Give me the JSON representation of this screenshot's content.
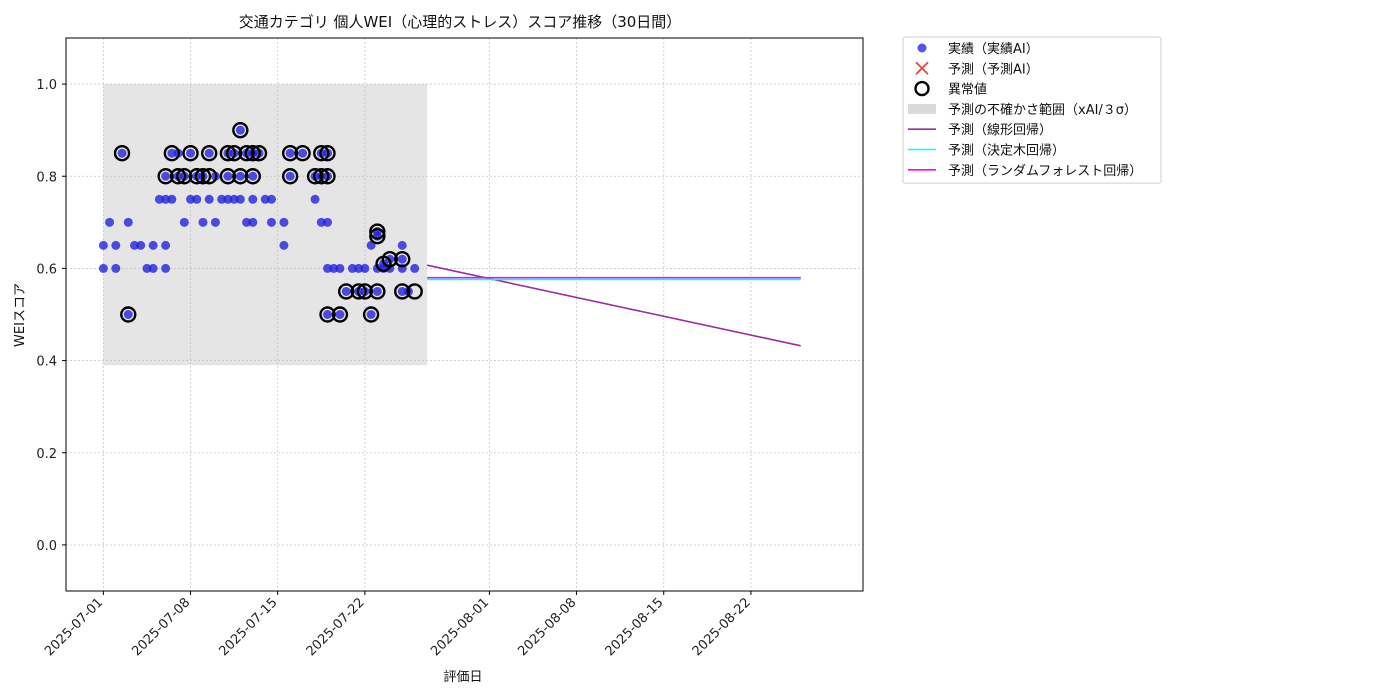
{
  "chart_data": {
    "type": "scatter",
    "title": "交通カテゴリ 個人WEI（心理的ストレス）スコア推移（30日間）",
    "xlabel": "評価日",
    "ylabel": "WEIスコア",
    "xlim": [
      "2025-06-28",
      "2025-08-31"
    ],
    "ylim": [
      -0.1,
      1.1
    ],
    "x_ticks": [
      "2025-07-01",
      "2025-07-08",
      "2025-07-15",
      "2025-07-22",
      "2025-08-01",
      "2025-08-08",
      "2025-08-15",
      "2025-08-22"
    ],
    "y_ticks": [
      "0.0",
      "0.2",
      "0.4",
      "0.6",
      "0.8",
      "1.0"
    ],
    "grid": true,
    "legend_position": "outside-top-right",
    "uncertainty_band": {
      "x": [
        "2025-07-01",
        "2025-07-27"
      ],
      "y": [
        0.39,
        1.0
      ]
    },
    "actual": [
      [
        "2025-07-01",
        0.6
      ],
      [
        "2025-07-01",
        0.65
      ],
      [
        "2025-07-01.5",
        0.7
      ],
      [
        "2025-07-02",
        0.65
      ],
      [
        "2025-07-02",
        0.6
      ],
      [
        "2025-07-02.5",
        0.85
      ],
      [
        "2025-07-03",
        0.7
      ],
      [
        "2025-07-03",
        0.5
      ],
      [
        "2025-07-03.5",
        0.65
      ],
      [
        "2025-07-04",
        0.65
      ],
      [
        "2025-07-04.5",
        0.6
      ],
      [
        "2025-07-05",
        0.65
      ],
      [
        "2025-07-05",
        0.6
      ],
      [
        "2025-07-05.5",
        0.75
      ],
      [
        "2025-07-06",
        0.6
      ],
      [
        "2025-07-06",
        0.65
      ],
      [
        "2025-07-06",
        0.75
      ],
      [
        "2025-07-06",
        0.8
      ],
      [
        "2025-07-06.5",
        0.75
      ],
      [
        "2025-07-06.5",
        0.85
      ],
      [
        "2025-07-07",
        0.8
      ],
      [
        "2025-07-07",
        0.85
      ],
      [
        "2025-07-07.5",
        0.8
      ],
      [
        "2025-07-07.5",
        0.7
      ],
      [
        "2025-07-08",
        0.75
      ],
      [
        "2025-07-08",
        0.85
      ],
      [
        "2025-07-08.5",
        0.8
      ],
      [
        "2025-07-08.5",
        0.75
      ],
      [
        "2025-07-09",
        0.7
      ],
      [
        "2025-07-09",
        0.8
      ],
      [
        "2025-07-09.5",
        0.75
      ],
      [
        "2025-07-09.5",
        0.85
      ],
      [
        "2025-07-10",
        0.7
      ],
      [
        "2025-07-10",
        0.8
      ],
      [
        "2025-07-10.5",
        0.75
      ],
      [
        "2025-07-11",
        0.75
      ],
      [
        "2025-07-11",
        0.85
      ],
      [
        "2025-07-11",
        0.8
      ],
      [
        "2025-07-11.5",
        0.85
      ],
      [
        "2025-07-11.5",
        0.75
      ],
      [
        "2025-07-12",
        0.8
      ],
      [
        "2025-07-12",
        0.9
      ],
      [
        "2025-07-12",
        0.75
      ],
      [
        "2025-07-12.5",
        0.85
      ],
      [
        "2025-07-12.5",
        0.7
      ],
      [
        "2025-07-13",
        0.75
      ],
      [
        "2025-07-13",
        0.7
      ],
      [
        "2025-07-13",
        0.85
      ],
      [
        "2025-07-13",
        0.8
      ],
      [
        "2025-07-13.5",
        0.85
      ],
      [
        "2025-07-14",
        0.75
      ],
      [
        "2025-07-14.5",
        0.75
      ],
      [
        "2025-07-14.5",
        0.7
      ],
      [
        "2025-07-15.5",
        0.7
      ],
      [
        "2025-07-15.5",
        0.65
      ],
      [
        "2025-07-16",
        0.85
      ],
      [
        "2025-07-16",
        0.8
      ],
      [
        "2025-07-17",
        0.85
      ],
      [
        "2025-07-18",
        0.8
      ],
      [
        "2025-07-18",
        0.75
      ],
      [
        "2025-07-18.5",
        0.85
      ],
      [
        "2025-07-18.5",
        0.8
      ],
      [
        "2025-07-18.5",
        0.7
      ],
      [
        "2025-07-19",
        0.7
      ],
      [
        "2025-07-19",
        0.6
      ],
      [
        "2025-07-19",
        0.85
      ],
      [
        "2025-07-19",
        0.8
      ],
      [
        "2025-07-19",
        0.5
      ],
      [
        "2025-07-19.5",
        0.6
      ],
      [
        "2025-07-20",
        0.6
      ],
      [
        "2025-07-20",
        0.5
      ],
      [
        "2025-07-20.5",
        0.55
      ],
      [
        "2025-07-21",
        0.6
      ],
      [
        "2025-07-21.5",
        0.6
      ],
      [
        "2025-07-21.5",
        0.55
      ],
      [
        "2025-07-22",
        0.6
      ],
      [
        "2025-07-22",
        0.55
      ],
      [
        "2025-07-22.5",
        0.65
      ],
      [
        "2025-07-22.5",
        0.5
      ],
      [
        "2025-07-23",
        0.55
      ],
      [
        "2025-07-23",
        0.6
      ],
      [
        "2025-07-23",
        0.68
      ],
      [
        "2025-07-23",
        0.67
      ],
      [
        "2025-07-23.5",
        0.61
      ],
      [
        "2025-07-23.5",
        0.6
      ],
      [
        "2025-07-24",
        0.62
      ],
      [
        "2025-07-24",
        0.6
      ],
      [
        "2025-07-25",
        0.6
      ],
      [
        "2025-07-25",
        0.62
      ],
      [
        "2025-07-25",
        0.55
      ],
      [
        "2025-07-25",
        0.65
      ],
      [
        "2025-07-25.5",
        0.55
      ],
      [
        "2025-07-26",
        0.6
      ]
    ],
    "anomalies": [
      [
        "2025-07-02.5",
        0.85
      ],
      [
        "2025-07-03",
        0.5
      ],
      [
        "2025-07-06",
        0.8
      ],
      [
        "2025-07-06.5",
        0.85
      ],
      [
        "2025-07-07",
        0.8
      ],
      [
        "2025-07-07.5",
        0.8
      ],
      [
        "2025-07-08",
        0.85
      ],
      [
        "2025-07-08.5",
        0.8
      ],
      [
        "2025-07-09.5",
        0.85
      ],
      [
        "2025-07-09",
        0.8
      ],
      [
        "2025-07-09.5",
        0.8
      ],
      [
        "2025-07-11",
        0.85
      ],
      [
        "2025-07-11",
        0.8
      ],
      [
        "2025-07-11.5",
        0.85
      ],
      [
        "2025-07-12",
        0.8
      ],
      [
        "2025-07-12",
        0.9
      ],
      [
        "2025-07-12.5",
        0.85
      ],
      [
        "2025-07-13",
        0.85
      ],
      [
        "2025-07-13",
        0.8
      ],
      [
        "2025-07-13.5",
        0.85
      ],
      [
        "2025-07-16",
        0.85
      ],
      [
        "2025-07-16",
        0.8
      ],
      [
        "2025-07-17",
        0.85
      ],
      [
        "2025-07-18",
        0.8
      ],
      [
        "2025-07-18.5",
        0.85
      ],
      [
        "2025-07-18.5",
        0.8
      ],
      [
        "2025-07-19",
        0.85
      ],
      [
        "2025-07-19",
        0.8
      ],
      [
        "2025-07-19",
        0.5
      ],
      [
        "2025-07-20",
        0.5
      ],
      [
        "2025-07-20.5",
        0.55
      ],
      [
        "2025-07-21.5",
        0.55
      ],
      [
        "2025-07-22",
        0.55
      ],
      [
        "2025-07-22.5",
        0.5
      ],
      [
        "2025-07-23",
        0.55
      ],
      [
        "2025-07-23",
        0.68
      ],
      [
        "2025-07-23",
        0.67
      ],
      [
        "2025-07-23.5",
        0.61
      ],
      [
        "2025-07-24",
        0.62
      ],
      [
        "2025-07-25",
        0.62
      ],
      [
        "2025-07-25",
        0.55
      ],
      [
        "2025-07-26",
        0.55
      ]
    ],
    "series": [
      {
        "name": "予測（線形回帰）",
        "color": "#9a2ea0",
        "x": [
          "2025-07-27",
          "2025-08-26"
        ],
        "y": [
          0.607,
          0.432
        ]
      },
      {
        "name": "予測（決定木回帰）",
        "color": "#00ffff",
        "x": [
          "2025-07-27",
          "2025-08-26"
        ],
        "y": [
          0.576,
          0.576
        ]
      },
      {
        "name": "予測（ランダムフォレスト回帰）",
        "color": "#ff00ff",
        "x": [
          "2025-07-27",
          "2025-08-26"
        ],
        "y": [
          0.58,
          0.58
        ]
      }
    ],
    "legend": [
      {
        "label": "実績（実績AI）",
        "marker": "dot",
        "color": "#2a2ae8"
      },
      {
        "label": "予測（予測AI）",
        "marker": "x",
        "color": "#f04040"
      },
      {
        "label": "異常値",
        "marker": "ring",
        "color": "#000000"
      },
      {
        "label": "予測の不確かさ範囲（xAI/３σ）",
        "marker": "patch",
        "color": "#d9d9d9"
      },
      {
        "label": "予測（線形回帰）",
        "marker": "line",
        "color": "#9a2ea0"
      },
      {
        "label": "予測（決定木回帰）",
        "marker": "line",
        "color": "#00ffff"
      },
      {
        "label": "予測（ランダムフォレスト回帰）",
        "marker": "line",
        "color": "#ff00ff"
      }
    ]
  }
}
